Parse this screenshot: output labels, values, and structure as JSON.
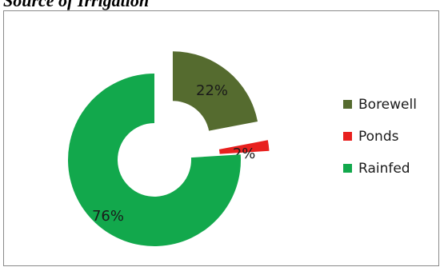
{
  "page": {
    "heading": "Source of Irrigation"
  },
  "chart_data": {
    "type": "pie",
    "style": "donut-exploded",
    "title": "",
    "legend_position": "right",
    "slices": [
      {
        "name": "Borewell",
        "value": 22,
        "label": "22%",
        "color": "#556B2F",
        "exploded": true
      },
      {
        "name": "Ponds",
        "value": 2,
        "label": "2%",
        "color": "#E8201E",
        "exploded": true
      },
      {
        "name": "Rainfed",
        "value": 76,
        "label": "76%",
        "color": "#12A84C",
        "exploded": false
      }
    ]
  }
}
